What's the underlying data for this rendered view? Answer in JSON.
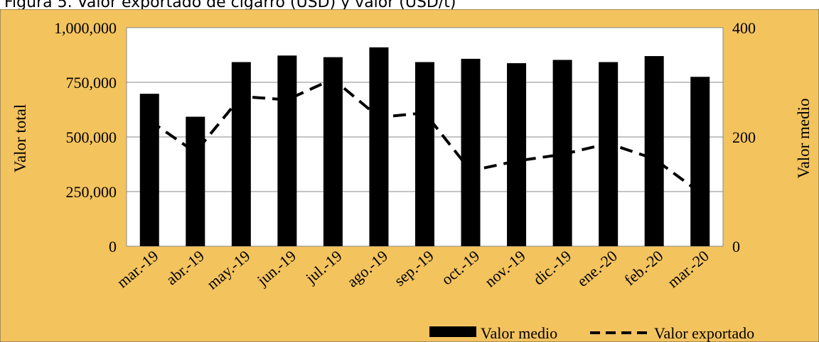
{
  "caption": "Figura 5. Valor exportado de cigarro (USD) y valor (USD/t)",
  "chart_data": {
    "type": "bar",
    "categories": [
      "mar.-19",
      "abr.-19",
      "may.-19",
      "jun.-19",
      "jul.-19",
      "ago.-19",
      "sep.-19",
      "oct.-19",
      "nov.-19",
      "dic.-19",
      "ene.-20",
      "feb.-20",
      "mar.-20"
    ],
    "series": [
      {
        "name": "Valor medio",
        "type": "bar",
        "axis": "right",
        "values": [
          279,
          237,
          337,
          349,
          346,
          364,
          337,
          343,
          335,
          341,
          337,
          348,
          310
        ]
      },
      {
        "name": "Valor exportado",
        "type": "line",
        "style": "dashed",
        "axis": "left",
        "values": [
          575000,
          430000,
          685000,
          670000,
          765000,
          590000,
          610000,
          345000,
          390000,
          420000,
          470000,
          400000,
          245000
        ]
      }
    ],
    "y_left": {
      "label": "Valor total",
      "range": [
        0,
        1000000
      ],
      "ticks": [
        "0",
        "250,000",
        "500,000",
        "750,000",
        "1,000,000"
      ],
      "tick_values": [
        0,
        250000,
        500000,
        750000,
        1000000
      ]
    },
    "y_right": {
      "label": "Valor medio",
      "range": [
        0,
        400
      ],
      "ticks": [
        "0",
        "200",
        "400"
      ],
      "tick_values": [
        0,
        200,
        400
      ]
    },
    "grid": true,
    "legend": "bottom-right",
    "colors": {
      "background": "#f3c35e",
      "plot": "#ffffff",
      "bars": "#000000",
      "line": "#000000",
      "grid": "#8a8a8a"
    }
  }
}
